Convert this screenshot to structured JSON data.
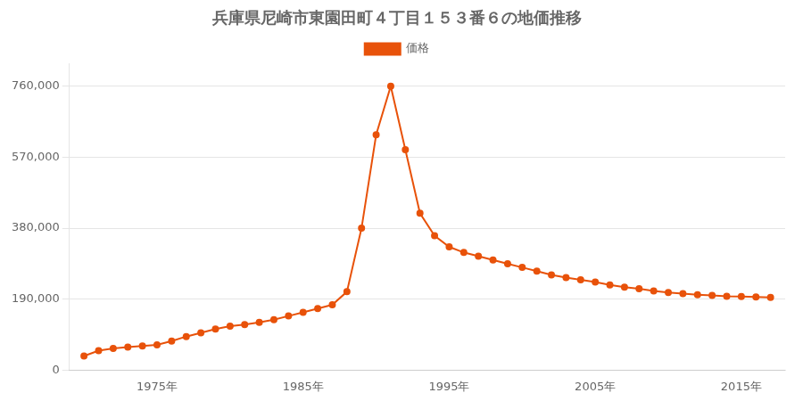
{
  "chart_data": {
    "type": "line",
    "title": "兵庫県尼崎市東園田町４丁目１５３番６の地価推移",
    "x": [
      1970,
      1971,
      1972,
      1973,
      1974,
      1975,
      1976,
      1977,
      1978,
      1979,
      1980,
      1981,
      1982,
      1983,
      1984,
      1985,
      1986,
      1987,
      1988,
      1989,
      1990,
      1991,
      1992,
      1993,
      1994,
      1995,
      1996,
      1997,
      1998,
      1999,
      2000,
      2001,
      2002,
      2003,
      2004,
      2005,
      2006,
      2007,
      2008,
      2009,
      2010,
      2011,
      2012,
      2013,
      2014,
      2015,
      2016,
      2017
    ],
    "series": [
      {
        "name": "価格",
        "color": "#E8520A",
        "marker": "circle",
        "values": [
          38000,
          52000,
          58000,
          62000,
          65000,
          68000,
          78000,
          90000,
          100000,
          110000,
          118000,
          122000,
          128000,
          135000,
          145000,
          155000,
          165000,
          175000,
          210000,
          380000,
          630000,
          760000,
          590000,
          420000,
          360000,
          330000,
          315000,
          305000,
          295000,
          285000,
          275000,
          265000,
          255000,
          248000,
          242000,
          236000,
          228000,
          222000,
          218000,
          212000,
          208000,
          205000,
          202000,
          200000,
          198000,
          197000,
          196000,
          195000
        ]
      }
    ],
    "xlim": [
      1969,
      2018
    ],
    "xticks": [
      {
        "value": 1975,
        "label": "1975年"
      },
      {
        "value": 1985,
        "label": "1985年"
      },
      {
        "value": 1995,
        "label": "1995年"
      },
      {
        "value": 2005,
        "label": "2005年"
      },
      {
        "value": 2015,
        "label": "2015年"
      }
    ],
    "ylim": [
      0,
      820000
    ],
    "yticks": [
      0,
      {
        "value": 190000,
        "label": "190,000"
      },
      {
        "value": 380000,
        "label": "380,000"
      },
      {
        "value": 570000,
        "label": "570,000"
      },
      {
        "value": 760000,
        "label": "760,000"
      }
    ],
    "grid": "y",
    "legend": "top"
  }
}
